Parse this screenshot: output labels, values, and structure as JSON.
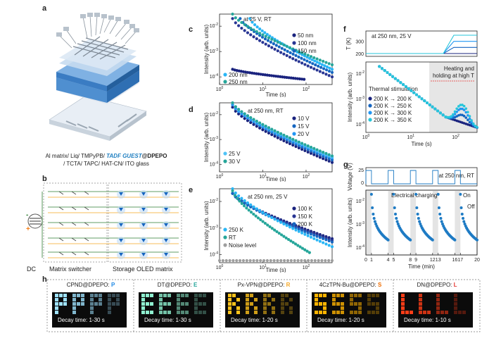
{
  "panel_labels": {
    "a": "a",
    "b": "b",
    "c": "c",
    "d": "d",
    "e": "e",
    "f": "f",
    "g": "g",
    "h": "h"
  },
  "panel_a": {
    "line1_prefix": "Al matrix/ Liq/ TMPyPB/ ",
    "line1_guest": "TADF GUEST",
    "line1_host": "@DPEPO",
    "line2": "/ TCTA/ TAPC/ HAT-CN/ ITO glass"
  },
  "panel_b": {
    "dc_label": "DC",
    "switcher_label": "Matrix switcher",
    "storage_label": "Storage OLED matrix",
    "minus": "-",
    "plus": "+"
  },
  "chart_data": [
    {
      "panel": "c",
      "type": "scatter",
      "title": "at 25 V, RT",
      "xlabel": "Time (s)",
      "ylabel": "Intensity (arb. units)",
      "xscale": "log",
      "yscale": "log",
      "xlim": [
        1,
        400
      ],
      "ylim": [
        5e-05,
        0.03
      ],
      "xticks": [
        "10^0",
        "10^1",
        "10^2"
      ],
      "yticks": [
        "10^-4",
        "10^-3",
        "10^-2"
      ],
      "series": [
        {
          "name": "50 nm",
          "color": "#1a237e",
          "start_t": 2.0,
          "start_I": 0.0002,
          "end_t": 90,
          "end_I": 8e-05
        },
        {
          "name": "100 nm",
          "color": "#283593",
          "start_t": 2.0,
          "start_I": 0.02,
          "end_t": 400,
          "end_I": 0.0001
        },
        {
          "name": "150 nm",
          "color": "#1565c0",
          "start_t": 3.0,
          "start_I": 0.02,
          "end_t": 400,
          "end_I": 0.00015
        },
        {
          "name": "200 nm",
          "color": "#29b6f6",
          "start_t": 5.0,
          "start_I": 0.02,
          "end_t": 400,
          "end_I": 0.0002
        },
        {
          "name": "250 nm",
          "color": "#26a69a",
          "start_t": 2.0,
          "start_I": 0.03,
          "end_t": 400,
          "end_I": 0.0003
        }
      ]
    },
    {
      "panel": "d",
      "type": "scatter",
      "title": "at 250 nm, RT",
      "xlabel": "Time (s)",
      "ylabel": "Intensity (arb. units)",
      "xscale": "log",
      "yscale": "log",
      "xlim": [
        1,
        400
      ],
      "ylim": [
        5e-05,
        0.03
      ],
      "xticks": [
        "10^0",
        "10^1",
        "10^2"
      ],
      "yticks": [
        "10^-4",
        "10^-3",
        "10^-2"
      ],
      "series": [
        {
          "name": "10 V",
          "color": "#1a237e",
          "start_t": 2.0,
          "start_I": 0.02,
          "end_t": 400,
          "end_I": 0.00012
        },
        {
          "name": "15 V",
          "color": "#1565c0",
          "start_t": 2.0,
          "start_I": 0.025,
          "end_t": 400,
          "end_I": 0.00015
        },
        {
          "name": "20 V",
          "color": "#2196f3",
          "start_t": 2.0,
          "start_I": 0.025,
          "end_t": 400,
          "end_I": 0.00018
        },
        {
          "name": "25 V",
          "color": "#4fc3f7",
          "start_t": 2.0,
          "start_I": 0.03,
          "end_t": 400,
          "end_I": 0.0002
        },
        {
          "name": "30 V",
          "color": "#26a69a",
          "start_t": 2.0,
          "start_I": 0.03,
          "end_t": 400,
          "end_I": 0.00022
        }
      ]
    },
    {
      "panel": "e",
      "type": "scatter",
      "title": "at 250 nm, 25 V",
      "xlabel": "Time (s)",
      "ylabel": "Intensity (arb. units)",
      "xscale": "log",
      "yscale": "log",
      "xlim": [
        1,
        400
      ],
      "ylim": [
        5e-05,
        0.03
      ],
      "xticks": [
        "10^0",
        "10^1",
        "10^2"
      ],
      "yticks": [
        "10^-4",
        "10^-3",
        "10^-2"
      ],
      "series": [
        {
          "name": "100 K",
          "color": "#1a237e",
          "start_t": 2.0,
          "start_I": 0.02,
          "end_t": 400,
          "end_I": 0.0004
        },
        {
          "name": "150 K",
          "color": "#283593",
          "start_t": 2.0,
          "start_I": 0.02,
          "end_t": 400,
          "end_I": 0.00035
        },
        {
          "name": "200 K",
          "color": "#1565c0",
          "start_t": 2.0,
          "start_I": 0.02,
          "end_t": 400,
          "end_I": 0.0003
        },
        {
          "name": "250 K",
          "color": "#29b6f6",
          "start_t": 2.0,
          "start_I": 0.03,
          "end_t": 400,
          "end_I": 0.0002
        },
        {
          "name": "RT",
          "color": "#26a69a",
          "start_t": 2.0,
          "start_I": 0.025,
          "end_t": 120,
          "end_I": 0.00012
        },
        {
          "name": "Noise level",
          "color": "#9e9e9e",
          "start_t": 1.0,
          "start_I": 6e-05,
          "end_t": 400,
          "end_I": 6e-05
        }
      ]
    },
    {
      "panel": "f",
      "type": "line",
      "top_title": "at 250 nm, 25 V",
      "top_ylabel": "T (K)",
      "top_yticks": [
        200,
        300
      ],
      "annotation": "Heating and holding at high T",
      "legend_title": "Thermal stimulation",
      "xlabel": "Time (s)",
      "ylabel": "Intensity (arb. units)",
      "xscale": "log",
      "yscale": "log",
      "xlim": [
        1,
        300
      ],
      "ylim": [
        5e-05,
        0.03
      ],
      "xticks": [
        "10^0",
        "10^1",
        "10^2"
      ],
      "yticks": [
        "10^-4",
        "10^-3",
        "10^-2"
      ],
      "series": [
        {
          "name": "200 K → 200 K",
          "color": "#1a237e",
          "T_hold": 200
        },
        {
          "name": "200 K → 250 K",
          "color": "#1565c0",
          "T_hold": 250
        },
        {
          "name": "200 K → 300 K",
          "color": "#2196f3",
          "T_hold": 300
        },
        {
          "name": "200 K → 350 K",
          "color": "#26c6da",
          "T_hold": 350
        }
      ]
    },
    {
      "panel": "g",
      "type": "scatter",
      "top_title": "at 250 nm, RT",
      "top_ylabel": "Voltage (V)",
      "top_yticks": [
        0,
        25
      ],
      "charging_label": "Electrical charging",
      "on_label": "On",
      "off_label": "Off",
      "xlabel": "Time (min)",
      "ylabel": "Intensity (arb. units)",
      "yscale": "log",
      "xlim": [
        0,
        20
      ],
      "ylim": [
        5e-05,
        0.03
      ],
      "xticks": [
        0,
        1,
        4,
        5,
        8,
        9,
        12,
        13,
        16,
        17,
        20
      ],
      "yticks": [
        "10^-4",
        "10^-3",
        "10^-2"
      ],
      "cycles": [
        {
          "on": 0,
          "off": 1
        },
        {
          "on": 4,
          "off": 5
        },
        {
          "on": 8,
          "off": 9
        },
        {
          "on": 12,
          "off": 13
        },
        {
          "on": 16,
          "off": 17
        }
      ],
      "color": "#1e7bc4"
    }
  ],
  "panel_h": [
    {
      "material": "CPND@DPEPO: ",
      "letter": "P",
      "letter_color": "#1e88e5",
      "decay": "Decay time: 1-30 s",
      "glow": "#9fe2ff"
    },
    {
      "material": "DT@DPEPO: ",
      "letter": "E",
      "letter_color": "#26a69a",
      "decay": "Decay time: 1-30 s",
      "glow": "#8ff0d0"
    },
    {
      "material": "Px-VPN@DPEPO: ",
      "letter": "R",
      "letter_color": "#f5a623",
      "decay": "Decay time: 1-20 s",
      "glow": "#ffc21a"
    },
    {
      "material": "4CzTPN-Bu@DPEPO: ",
      "letter": "S",
      "letter_color": "#ef6c00",
      "decay": "Decay time: 1-20 s",
      "glow": "#ffb300"
    },
    {
      "material": "DN@DPEPO: ",
      "letter": "L",
      "letter_color": "#e53935",
      "decay": "Decay time: 1-10 s",
      "glow": "#ff3d17"
    }
  ]
}
